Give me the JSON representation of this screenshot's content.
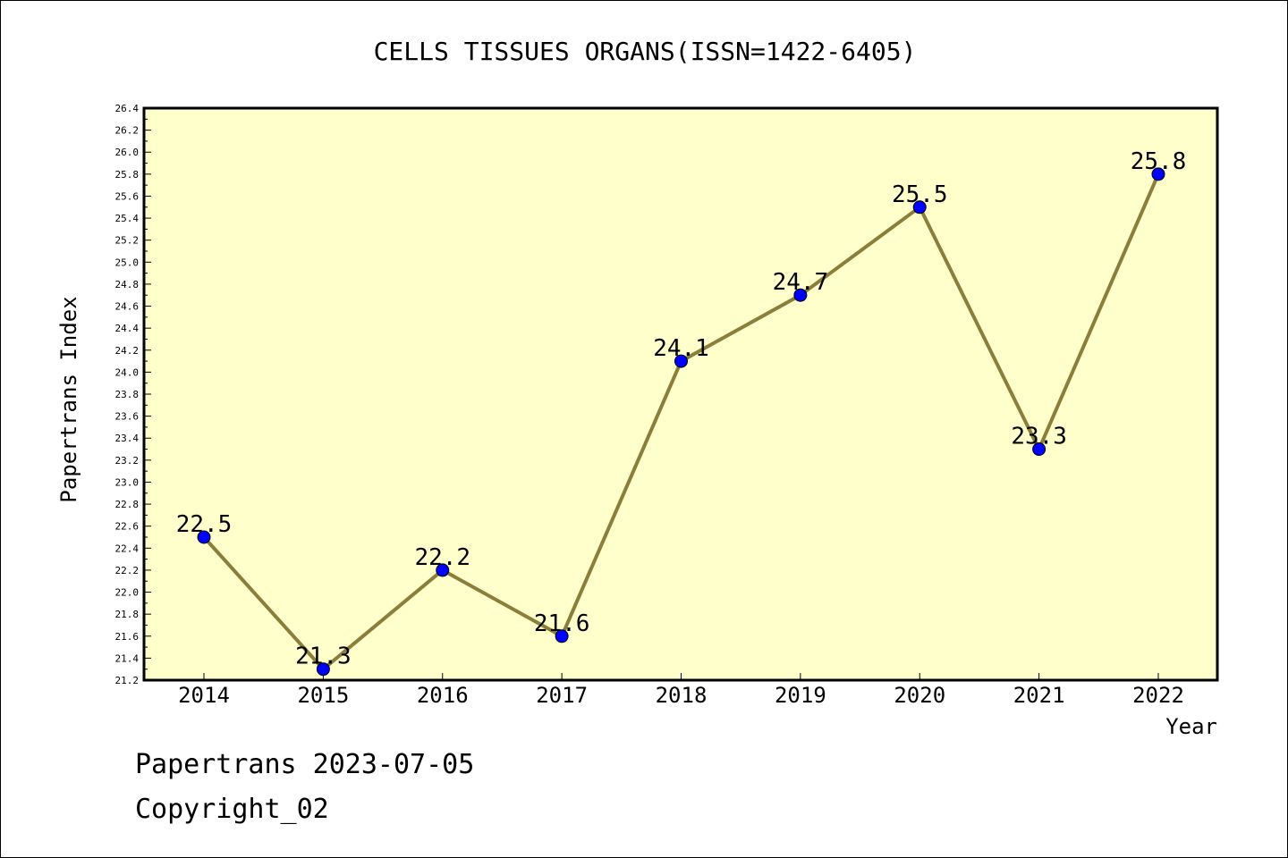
{
  "chart_data": {
    "type": "line",
    "title": "CELLS TISSUES ORGANS(ISSN=1422-6405)",
    "xlabel": "Year",
    "ylabel": "Papertrans Index",
    "categories": [
      "2014",
      "2015",
      "2016",
      "2017",
      "2018",
      "2019",
      "2020",
      "2021",
      "2022"
    ],
    "values": [
      22.5,
      21.3,
      22.2,
      21.6,
      24.1,
      24.7,
      25.5,
      23.3,
      25.8
    ],
    "data_labels": [
      "22.5",
      "21.3",
      "22.2",
      "21.6",
      "24.1",
      "24.7",
      "25.5",
      "23.3",
      "25.8"
    ],
    "ylim": [
      21.2,
      26.4
    ],
    "y_ticks": [
      "21.2",
      "21.4",
      "21.6",
      "21.8",
      "22.0",
      "22.2",
      "22.4",
      "22.6",
      "22.8",
      "23.0",
      "23.2",
      "23.4",
      "23.6",
      "23.8",
      "24.0",
      "24.2",
      "24.4",
      "24.6",
      "24.8",
      "25.0",
      "25.2",
      "25.4",
      "25.6",
      "25.8",
      "26.0",
      "26.2",
      "26.4"
    ],
    "grid": false,
    "colors": {
      "plot_background": "#ffffcc",
      "line": "#8b7d3a",
      "marker": "#0000ff"
    }
  },
  "footer": {
    "line1": "Papertrans 2023-07-05",
    "line2": "Copyright_02"
  }
}
